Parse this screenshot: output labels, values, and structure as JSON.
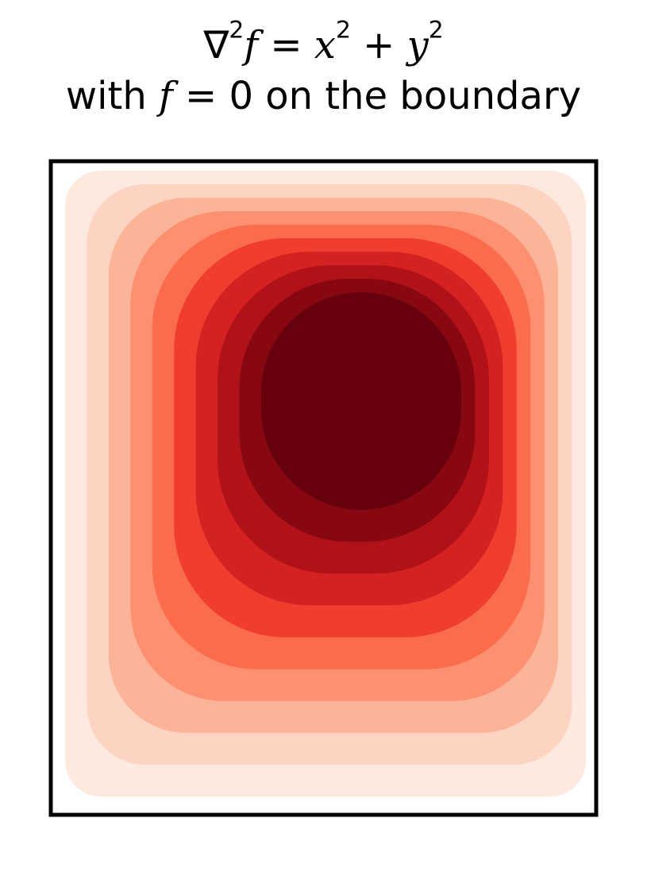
{
  "title_line1": {
    "nabla": "∇",
    "sq1": "2",
    "f": "f",
    "eq": " = ",
    "x": "x",
    "sq2": "2",
    "plus": " + ",
    "y": "y",
    "sq3": "2"
  },
  "title_line2": {
    "with": "with ",
    "f": "f",
    "rest": " = 0 on the boundary"
  },
  "chart_data": {
    "type": "heatmap",
    "subtype": "filled-contour",
    "equation": "∇²f = x² + y²",
    "boundary_condition": "f = 0 on the boundary",
    "colormap": "Reds",
    "levels": 9,
    "level_colors": [
      "#fee9df",
      "#fdd4c2",
      "#fcb499",
      "#fc9070",
      "#fb6c4c",
      "#f03d2d",
      "#d42121",
      "#b11218",
      "#880811",
      "#67000d"
    ],
    "peak_location": "upper-center",
    "axes_ticks": false,
    "frame_sides": [
      "left",
      "top",
      "right",
      "bottom"
    ]
  }
}
